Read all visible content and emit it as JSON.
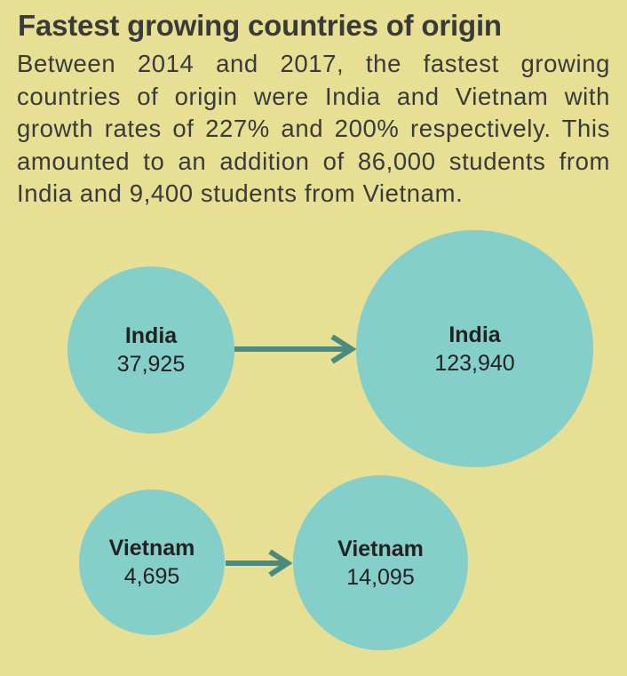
{
  "heading": {
    "title": "Fastest growing countries of origin",
    "body": "Between 2014 and 2017, the fastest growing countries of origin were India and Vietnam with growth rates of 227% and 200% respectively. This amounted to an addition of 86,000 students from India and 9,400 students from Vietnam."
  },
  "colors": {
    "background": "#e6df94",
    "circle": "#84cfc9",
    "arrow": "#4a8b7f"
  },
  "flows": [
    {
      "from": {
        "country": "India",
        "value": "37,925"
      },
      "to": {
        "country": "India",
        "value": "123,940"
      }
    },
    {
      "from": {
        "country": "Vietnam",
        "value": "4,695"
      },
      "to": {
        "country": "Vietnam",
        "value": "14,095"
      }
    }
  ]
}
